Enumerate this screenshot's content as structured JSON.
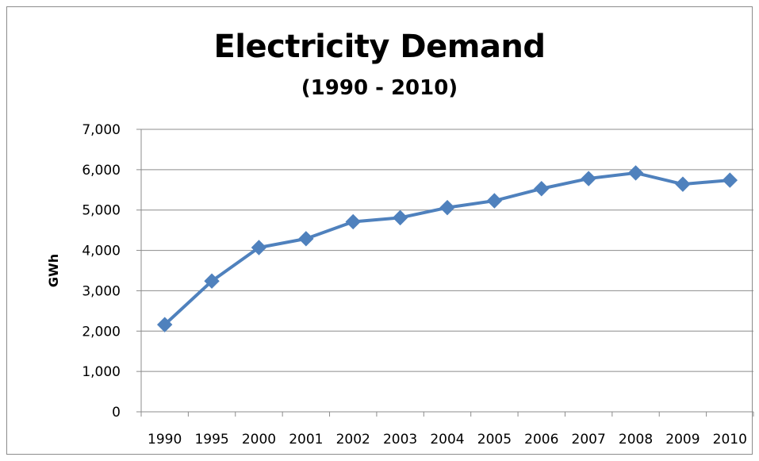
{
  "chart_data": {
    "type": "line",
    "title": "Electricity Demand",
    "subtitle": "(1990 - 2010)",
    "xlabel": "",
    "ylabel": "GWh",
    "categories": [
      "1990",
      "1995",
      "2000",
      "2001",
      "2002",
      "2003",
      "2004",
      "2005",
      "2006",
      "2007",
      "2008",
      "2009",
      "2010"
    ],
    "series": [
      {
        "values": [
          2160,
          3240,
          4070,
          4290,
          4710,
          4810,
          5060,
          5230,
          5530,
          5780,
          5920,
          5640,
          5740
        ]
      }
    ],
    "ylim": [
      0,
      7000
    ],
    "yticks": [
      0,
      1000,
      2000,
      3000,
      4000,
      5000,
      6000,
      7000
    ],
    "ytick_labels": [
      "0",
      "1,000",
      "2,000",
      "3,000",
      "4,000",
      "5,000",
      "6,000",
      "7,000"
    ],
    "grid": true,
    "legend": "none",
    "colors": {
      "line": "#4F81BD",
      "grid": "#8c8c8c",
      "axis": "#8c8c8c"
    }
  }
}
